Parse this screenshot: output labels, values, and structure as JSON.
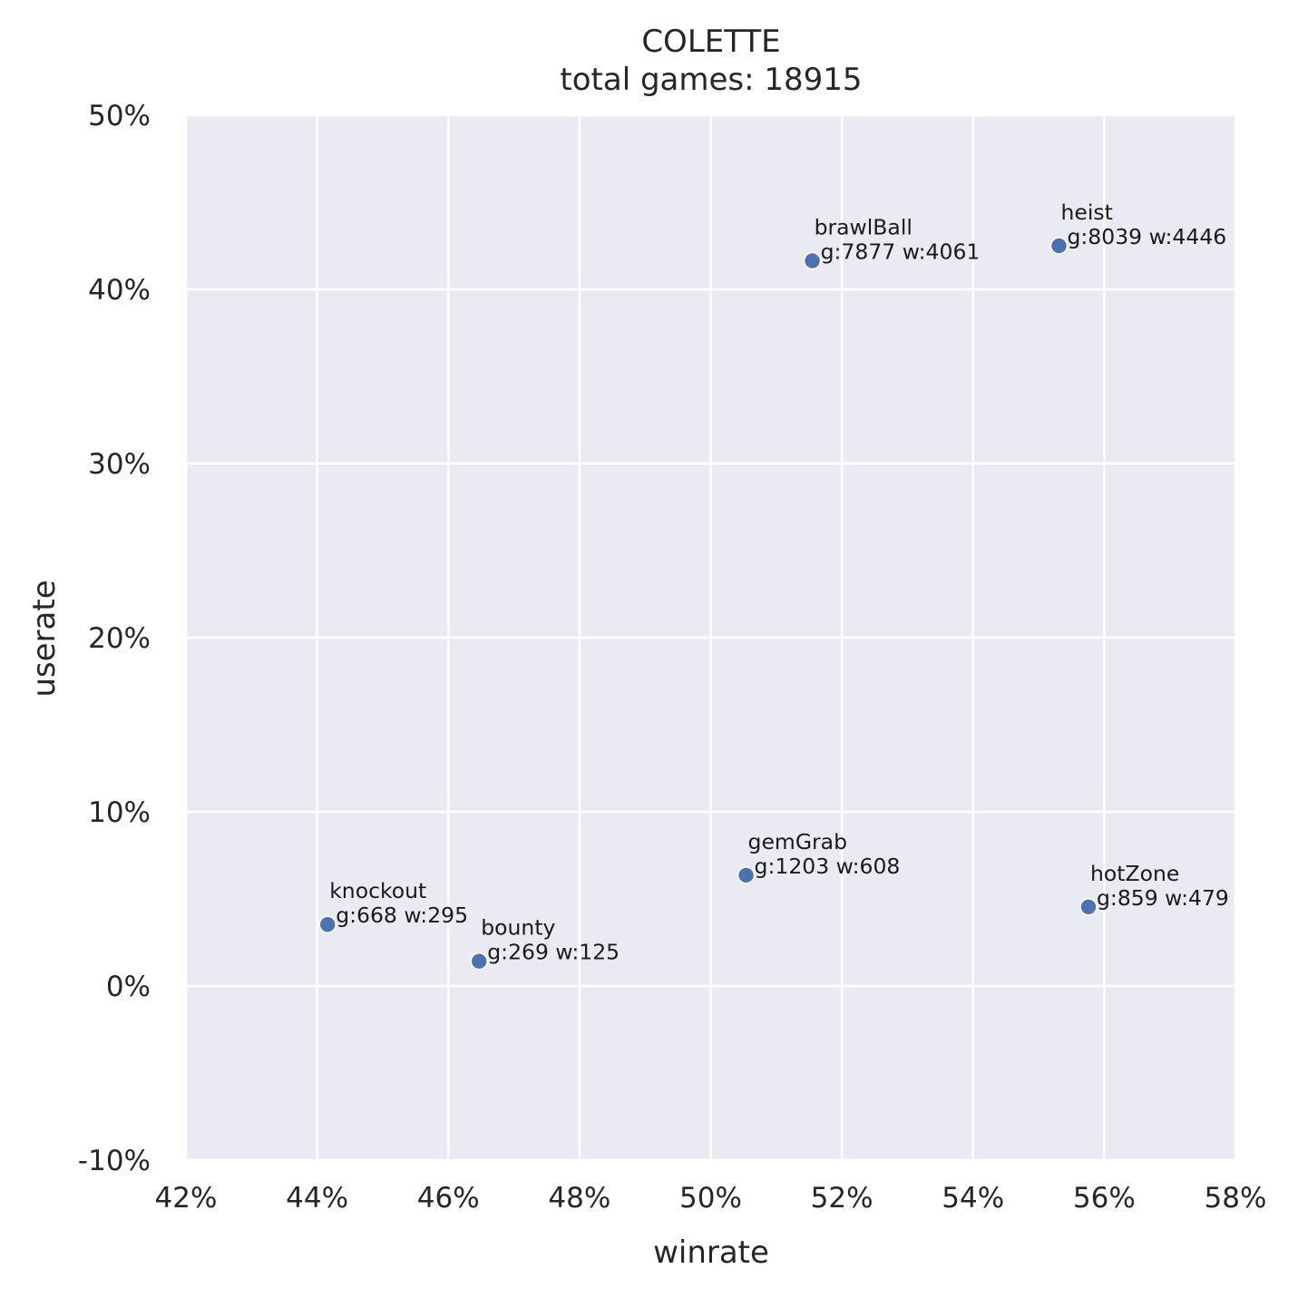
{
  "chart_data": {
    "type": "scatter",
    "title": "COLETTE",
    "subtitle": "total games: 18915",
    "xlabel": "winrate",
    "ylabel": "userate",
    "xlim": [
      0.42,
      0.58
    ],
    "ylim": [
      -0.1,
      0.5
    ],
    "x_ticks": [
      {
        "value": 0.42,
        "label": "42%"
      },
      {
        "value": 0.44,
        "label": "44%"
      },
      {
        "value": 0.46,
        "label": "46%"
      },
      {
        "value": 0.48,
        "label": "48%"
      },
      {
        "value": 0.5,
        "label": "50%"
      },
      {
        "value": 0.52,
        "label": "52%"
      },
      {
        "value": 0.54,
        "label": "54%"
      },
      {
        "value": 0.56,
        "label": "56%"
      },
      {
        "value": 0.58,
        "label": "58%"
      }
    ],
    "y_ticks": [
      {
        "value": -0.1,
        "label": "-10%"
      },
      {
        "value": 0.0,
        "label": "0%"
      },
      {
        "value": 0.1,
        "label": "10%"
      },
      {
        "value": 0.2,
        "label": "20%"
      },
      {
        "value": 0.3,
        "label": "30%"
      },
      {
        "value": 0.4,
        "label": "40%"
      },
      {
        "value": 0.5,
        "label": "50%"
      }
    ],
    "grid": true,
    "points": [
      {
        "mode": "brawlBall",
        "stats": "g:7877 w:4061",
        "x": 0.5155,
        "y": 0.4164
      },
      {
        "mode": "heist",
        "stats": "g:8039 w:4446",
        "x": 0.5531,
        "y": 0.425
      },
      {
        "mode": "gemGrab",
        "stats": "g:1203 w:608",
        "x": 0.5054,
        "y": 0.0636
      },
      {
        "mode": "hotZone",
        "stats": "g:859 w:479",
        "x": 0.5576,
        "y": 0.0454
      },
      {
        "mode": "knockout",
        "stats": "g:668 w:295",
        "x": 0.4416,
        "y": 0.0353
      },
      {
        "mode": "bounty",
        "stats": "g:269 w:125",
        "x": 0.4647,
        "y": 0.0142
      }
    ],
    "colors": {
      "point": "#4c72b0",
      "plot_background": "#eaeaf2",
      "grid": "#ffffff"
    }
  }
}
